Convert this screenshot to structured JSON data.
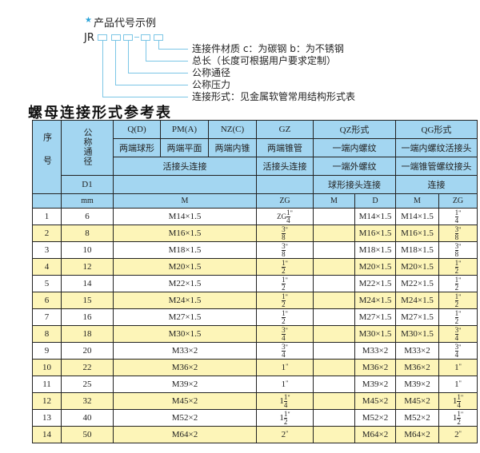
{
  "example": {
    "title": "产品代号示例",
    "code_prefix": "JR",
    "labels": [
      "连接件材质   c：为碳钢   b：为不锈钢",
      "总长（长度可根据用户要求定制）",
      "公称通径",
      "公称压力",
      "连接形式：见金属软管常用结构形式表"
    ]
  },
  "table_title": "螺母连接形式参考表",
  "header": {
    "seq": "序号",
    "dn": "公称通径",
    "d1": "D1",
    "mm": "mm",
    "q": "Q(D)",
    "pm": "PM(A)",
    "nz": "NZ(C)",
    "gz": "GZ",
    "qz": "QZ形式",
    "qg": "QG形式",
    "q2": "两端球形",
    "pm2": "两端平面",
    "nz2": "两端内锥",
    "gz2": "两端锥管",
    "qz2": "一端内螺纹",
    "qg2": "一端内螺纹活接头",
    "huo": "活接头连接",
    "gz3": "活接头连接",
    "qz3": "一端外螺纹",
    "qg3": "一端锥管螺纹接头",
    "qz4": "球形接头连接",
    "qg4": "连接",
    "m": "M",
    "zg": "ZG",
    "qzm": "M",
    "qzd": "D",
    "qgm": "M",
    "qgzg": "ZG"
  },
  "rows": [
    {
      "no": "1",
      "dn": "6",
      "m": "M14×1.5",
      "zg": {
        "pre": "ZG",
        "w": "",
        "n": "1",
        "d": "4"
      },
      "qzd": "M14×1.5",
      "qgm": "M14×1.5",
      "qgzg": {
        "pre": "",
        "w": "",
        "n": "1",
        "d": "4"
      }
    },
    {
      "no": "2",
      "dn": "8",
      "m": "M16×1.5",
      "zg": {
        "pre": "",
        "w": "",
        "n": "3",
        "d": "8"
      },
      "qzd": "M16×1.5",
      "qgm": "M16×1.5",
      "qgzg": {
        "pre": "",
        "w": "",
        "n": "3",
        "d": "8"
      }
    },
    {
      "no": "3",
      "dn": "10",
      "m": "M18×1.5",
      "zg": {
        "pre": "",
        "w": "",
        "n": "3",
        "d": "8"
      },
      "qzd": "M18×1.5",
      "qgm": "M18×1.5",
      "qgzg": {
        "pre": "",
        "w": "",
        "n": "3",
        "d": "8"
      }
    },
    {
      "no": "4",
      "dn": "12",
      "m": "M20×1.5",
      "zg": {
        "pre": "",
        "w": "",
        "n": "1",
        "d": "2"
      },
      "qzd": "M20×1.5",
      "qgm": "M20×1.5",
      "qgzg": {
        "pre": "",
        "w": "",
        "n": "1",
        "d": "2"
      }
    },
    {
      "no": "5",
      "dn": "14",
      "m": "M22×1.5",
      "zg": {
        "pre": "",
        "w": "",
        "n": "1",
        "d": "2"
      },
      "qzd": "M22×1.5",
      "qgm": "M22×1.5",
      "qgzg": {
        "pre": "",
        "w": "",
        "n": "1",
        "d": "2"
      }
    },
    {
      "no": "6",
      "dn": "15",
      "m": "M24×1.5",
      "zg": {
        "pre": "",
        "w": "",
        "n": "1",
        "d": "2"
      },
      "qzd": "M24×1.5",
      "qgm": "M24×1.5",
      "qgzg": {
        "pre": "",
        "w": "",
        "n": "1",
        "d": "2"
      }
    },
    {
      "no": "7",
      "dn": "16",
      "m": "M27×1.5",
      "zg": {
        "pre": "",
        "w": "",
        "n": "1",
        "d": "2"
      },
      "qzd": "M27×1.5",
      "qgm": "M27×1.5",
      "qgzg": {
        "pre": "",
        "w": "",
        "n": "1",
        "d": "2"
      }
    },
    {
      "no": "8",
      "dn": "18",
      "m": "M30×1.5",
      "zg": {
        "pre": "",
        "w": "",
        "n": "3",
        "d": "4"
      },
      "qzd": "M30×1.5",
      "qgm": "M30×1.5",
      "qgzg": {
        "pre": "",
        "w": "",
        "n": "3",
        "d": "4"
      }
    },
    {
      "no": "9",
      "dn": "20",
      "m": "M33×2",
      "zg": {
        "pre": "",
        "w": "",
        "n": "3",
        "d": "4"
      },
      "qzd": "M33×2",
      "qgm": "M33×2",
      "qgzg": {
        "pre": "",
        "w": "",
        "n": "3",
        "d": "4"
      }
    },
    {
      "no": "10",
      "dn": "22",
      "m": "M36×2",
      "zg": {
        "pre": "",
        "w": "1",
        "n": "",
        "d": ""
      },
      "qzd": "M36×2",
      "qgm": "M36×2",
      "qgzg": {
        "pre": "",
        "w": "1",
        "n": "",
        "d": ""
      }
    },
    {
      "no": "11",
      "dn": "25",
      "m": "M39×2",
      "zg": {
        "pre": "",
        "w": "1",
        "n": "",
        "d": ""
      },
      "qzd": "M39×2",
      "qgm": "M39×2",
      "qgzg": {
        "pre": "",
        "w": "1",
        "n": "",
        "d": ""
      }
    },
    {
      "no": "12",
      "dn": "32",
      "m": "M45×2",
      "zg": {
        "pre": "",
        "w": "1",
        "n": "1",
        "d": "4"
      },
      "qzd": "M45×2",
      "qgm": "M45×2",
      "qgzg": {
        "pre": "",
        "w": "1",
        "n": "1",
        "d": "4"
      }
    },
    {
      "no": "13",
      "dn": "40",
      "m": "M52×2",
      "zg": {
        "pre": "",
        "w": "1",
        "n": "1",
        "d": "2"
      },
      "qzd": "M52×2",
      "qgm": "M52×2",
      "qgzg": {
        "pre": "",
        "w": "1",
        "n": "1",
        "d": "2"
      }
    },
    {
      "no": "14",
      "dn": "50",
      "m": "M64×2",
      "zg": {
        "pre": "",
        "w": "2",
        "n": "",
        "d": ""
      },
      "qzd": "M64×2",
      "qgm": "M64×2",
      "qgzg": {
        "pre": "",
        "w": "2",
        "n": "",
        "d": ""
      }
    }
  ],
  "colors": {
    "header_bg": "#a3d6f1",
    "row_alt": "#fdf5b8",
    "accent": "#2aa3d8"
  }
}
